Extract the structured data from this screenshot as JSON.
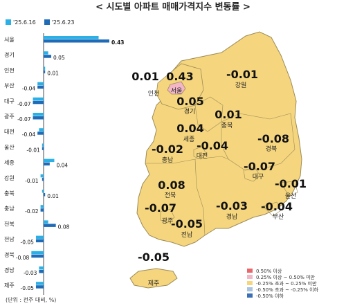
{
  "title": "< 시도별 아파트 매매가격지수 변동률 >",
  "unit_note": "(단위 : 전주 대비, %)",
  "colors": {
    "series_prev": "#2BB0E6",
    "series_curr": "#1F6BB8",
    "map_fill": "#F5D67E",
    "map_seoul": "#F2B6C6",
    "map_border": "#9C8A57"
  },
  "chart_data": {
    "type": "bar",
    "orientation": "horizontal",
    "categories": [
      "서울",
      "경기",
      "인천",
      "부산",
      "대구",
      "광주",
      "대전",
      "울산",
      "세종",
      "강원",
      "충북",
      "충남",
      "전북",
      "전남",
      "경북",
      "경남",
      "제주"
    ],
    "series": [
      {
        "name": "'25.6.16",
        "values": [
          0.36,
          0.03,
          0.01,
          -0.04,
          -0.07,
          -0.07,
          -0.03,
          -0.01,
          0.07,
          -0.02,
          -0.01,
          -0.02,
          0.03,
          -0.05,
          -0.08,
          -0.03,
          -0.05
        ]
      },
      {
        "name": "'25.6.23",
        "values": [
          0.43,
          0.05,
          0.01,
          -0.04,
          -0.07,
          -0.07,
          -0.04,
          -0.01,
          0.04,
          -0.01,
          0.01,
          -0.02,
          0.08,
          -0.05,
          -0.08,
          -0.03,
          -0.05
        ]
      }
    ],
    "data_labels": [
      "0.43",
      "0.05",
      "0.01",
      "-0.04",
      "-0.07",
      "-0.07",
      "-0.04",
      "-0.01",
      "0.04",
      "-0.01",
      "0.01",
      "-0.02",
      "0.08",
      "-0.05",
      "-0.08",
      "-0.03",
      "-0.05"
    ],
    "xlim": [
      -0.1,
      0.45
    ]
  },
  "map": {
    "regions": [
      {
        "name": "인천",
        "value": "0.01"
      },
      {
        "name": "서울",
        "value": "0.43"
      },
      {
        "name": "강원",
        "value": "-0.01"
      },
      {
        "name": "경기",
        "value": "0.05"
      },
      {
        "name": "충북",
        "value": "0.01"
      },
      {
        "name": "세종",
        "value": "0.04"
      },
      {
        "name": "대전",
        "value": "-0.04"
      },
      {
        "name": "경북",
        "value": "-0.08"
      },
      {
        "name": "충남",
        "value": "-0.02"
      },
      {
        "name": "대구",
        "value": "-0.07"
      },
      {
        "name": "울산",
        "value": "-0.01"
      },
      {
        "name": "전북",
        "value": "0.08"
      },
      {
        "name": "경남",
        "value": "-0.03"
      },
      {
        "name": "광주",
        "value": "-0.07"
      },
      {
        "name": "부산",
        "value": "-0.04"
      },
      {
        "name": "전남",
        "value": "-0.05"
      },
      {
        "name": "제주",
        "value": "-0.05"
      }
    ],
    "legend": [
      {
        "label": "0.50% 이상",
        "color": "#E8676B"
      },
      {
        "label": "0.25% 이상 ~ 0.50% 미만",
        "color": "#F2B6C6"
      },
      {
        "label": "-0.25% 초과 ~ 0.25% 미만",
        "color": "#F5D67E"
      },
      {
        "label": "-0.50% 초과 ~ -0.25% 이하",
        "color": "#A9C4E0"
      },
      {
        "label": "-0.50% 이하",
        "color": "#3B6FB6"
      }
    ]
  }
}
